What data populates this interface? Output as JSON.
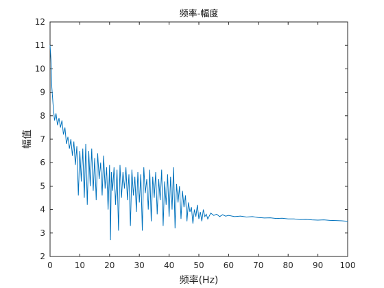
{
  "chart_data": {
    "type": "line",
    "title": "频率-幅度",
    "xlabel": "频率(Hz)",
    "ylabel": "幅值",
    "xlim": [
      0,
      100
    ],
    "ylim": [
      2,
      12
    ],
    "xticks": [
      0,
      10,
      20,
      30,
      40,
      50,
      60,
      70,
      80,
      90,
      100
    ],
    "yticks": [
      2,
      3,
      4,
      5,
      6,
      7,
      8,
      9,
      10,
      11,
      12
    ],
    "grid": false,
    "box": true,
    "series": [
      {
        "color": "#0072BD",
        "points": [
          [
            0.0,
            11.0
          ],
          [
            0.3,
            10.4
          ],
          [
            0.6,
            9.2
          ],
          [
            1.0,
            8.5
          ],
          [
            1.5,
            7.8
          ],
          [
            2.0,
            8.1
          ],
          [
            2.5,
            7.6
          ],
          [
            3.0,
            7.9
          ],
          [
            3.5,
            7.5
          ],
          [
            4.0,
            7.8
          ],
          [
            4.5,
            7.2
          ],
          [
            5.0,
            7.5
          ],
          [
            5.5,
            6.8
          ],
          [
            6.0,
            7.1
          ],
          [
            6.5,
            6.6
          ],
          [
            7.0,
            7.0
          ],
          [
            7.5,
            6.3
          ],
          [
            8.0,
            6.9
          ],
          [
            8.5,
            5.9
          ],
          [
            9.0,
            6.7
          ],
          [
            9.5,
            4.6
          ],
          [
            10.0,
            6.5
          ],
          [
            10.5,
            5.2
          ],
          [
            11.0,
            6.6
          ],
          [
            11.5,
            4.5
          ],
          [
            12.0,
            6.8
          ],
          [
            12.5,
            4.2
          ],
          [
            13.0,
            6.5
          ],
          [
            13.5,
            5.0
          ],
          [
            14.0,
            6.6
          ],
          [
            14.5,
            4.8
          ],
          [
            15.0,
            6.2
          ],
          [
            15.5,
            4.4
          ],
          [
            16.0,
            6.4
          ],
          [
            16.5,
            5.3
          ],
          [
            17.0,
            6.0
          ],
          [
            17.5,
            4.6
          ],
          [
            18.0,
            6.3
          ],
          [
            18.5,
            4.9
          ],
          [
            19.0,
            5.8
          ],
          [
            19.5,
            4.0
          ],
          [
            20.0,
            5.9
          ],
          [
            20.3,
            2.7
          ],
          [
            20.6,
            5.6
          ],
          [
            21.0,
            4.8
          ],
          [
            21.5,
            5.8
          ],
          [
            22.0,
            4.2
          ],
          [
            22.5,
            5.7
          ],
          [
            23.0,
            3.1
          ],
          [
            23.5,
            5.9
          ],
          [
            24.0,
            4.5
          ],
          [
            24.5,
            5.6
          ],
          [
            25.0,
            4.9
          ],
          [
            25.5,
            5.8
          ],
          [
            26.0,
            4.4
          ],
          [
            26.5,
            5.5
          ],
          [
            27.0,
            3.3
          ],
          [
            27.5,
            5.7
          ],
          [
            28.0,
            4.6
          ],
          [
            28.5,
            5.4
          ],
          [
            29.0,
            3.9
          ],
          [
            29.5,
            5.6
          ],
          [
            30.0,
            4.3
          ],
          [
            30.5,
            5.5
          ],
          [
            31.0,
            3.1
          ],
          [
            31.5,
            5.8
          ],
          [
            32.0,
            4.7
          ],
          [
            32.5,
            5.3
          ],
          [
            33.0,
            4.0
          ],
          [
            33.5,
            5.7
          ],
          [
            34.0,
            3.5
          ],
          [
            34.5,
            5.4
          ],
          [
            35.0,
            4.5
          ],
          [
            35.5,
            5.6
          ],
          [
            36.0,
            3.8
          ],
          [
            36.5,
            5.3
          ],
          [
            37.0,
            4.4
          ],
          [
            37.5,
            5.7
          ],
          [
            38.0,
            3.3
          ],
          [
            38.5,
            5.2
          ],
          [
            39.0,
            4.2
          ],
          [
            39.5,
            5.5
          ],
          [
            40.0,
            3.7
          ],
          [
            40.5,
            5.4
          ],
          [
            41.0,
            4.0
          ],
          [
            41.5,
            5.8
          ],
          [
            42.0,
            3.2
          ],
          [
            42.5,
            5.1
          ],
          [
            43.0,
            4.3
          ],
          [
            43.5,
            5.0
          ],
          [
            44.0,
            3.6
          ],
          [
            44.5,
            4.8
          ],
          [
            45.0,
            4.1
          ],
          [
            45.5,
            4.6
          ],
          [
            46.0,
            3.5
          ],
          [
            46.5,
            4.3
          ],
          [
            47.0,
            3.9
          ],
          [
            47.5,
            4.1
          ],
          [
            48.0,
            3.4
          ],
          [
            48.5,
            4.0
          ],
          [
            49.0,
            3.7
          ],
          [
            49.5,
            4.2
          ],
          [
            50.0,
            3.6
          ],
          [
            50.5,
            3.9
          ],
          [
            51.0,
            3.5
          ],
          [
            51.5,
            4.0
          ],
          [
            52.0,
            3.7
          ],
          [
            52.5,
            3.8
          ],
          [
            53.0,
            3.6
          ],
          [
            54.0,
            3.85
          ],
          [
            55.0,
            3.75
          ],
          [
            56.0,
            3.8
          ],
          [
            57.0,
            3.7
          ],
          [
            58.0,
            3.78
          ],
          [
            59.0,
            3.72
          ],
          [
            60.0,
            3.75
          ],
          [
            62.0,
            3.7
          ],
          [
            64.0,
            3.72
          ],
          [
            66.0,
            3.68
          ],
          [
            68.0,
            3.7
          ],
          [
            70.0,
            3.66
          ],
          [
            72.0,
            3.64
          ],
          [
            74.0,
            3.65
          ],
          [
            76.0,
            3.62
          ],
          [
            78.0,
            3.63
          ],
          [
            80.0,
            3.6
          ],
          [
            82.0,
            3.6
          ],
          [
            84.0,
            3.57
          ],
          [
            86.0,
            3.58
          ],
          [
            88.0,
            3.56
          ],
          [
            90.0,
            3.55
          ],
          [
            92.0,
            3.56
          ],
          [
            94.0,
            3.54
          ],
          [
            96.0,
            3.53
          ],
          [
            98.0,
            3.52
          ],
          [
            100.0,
            3.5
          ]
        ]
      }
    ]
  }
}
